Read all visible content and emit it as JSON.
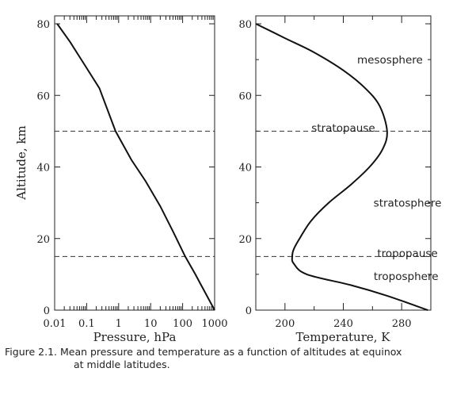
{
  "chart_data": [
    {
      "type": "line",
      "xlabel": "Pressure, hPa",
      "ylabel": "Altitude, km",
      "xscale": "log",
      "xlim": [
        0.01,
        1000
      ],
      "ylim": [
        0,
        80
      ],
      "xticks": [
        "0.01",
        "0.1",
        "1",
        "10",
        "100",
        "1000"
      ],
      "yticks": [
        "0",
        "20",
        "40",
        "60",
        "80"
      ],
      "series": [
        {
          "x": [
            0.012,
            0.03,
            0.08,
            0.25,
            0.8,
            2.5,
            7,
            20,
            50,
            120,
            250,
            500,
            1000
          ],
          "y": [
            80,
            75,
            69,
            62,
            50,
            42,
            36,
            29,
            22,
            15,
            10,
            5,
            0
          ]
        }
      ],
      "reference_lines": [
        50,
        15
      ]
    },
    {
      "type": "line",
      "xlabel": "Temperature, K",
      "xlim": [
        180,
        300
      ],
      "ylim": [
        0,
        80
      ],
      "xticks": [
        "200",
        "240",
        "280"
      ],
      "yticks": [
        "0",
        "20",
        "40",
        "60",
        "80"
      ],
      "series": [
        {
          "x": [
            180,
            200,
            220,
            240,
            255,
            265,
            270,
            267,
            258,
            245,
            230,
            218,
            210,
            206,
            205,
            206,
            215,
            245,
            270,
            298
          ],
          "y": [
            80,
            76,
            72,
            67,
            62,
            57,
            50,
            45,
            40,
            35,
            30,
            25,
            20,
            17,
            15,
            13,
            10,
            7,
            4,
            0
          ]
        }
      ],
      "reference_lines": [
        50,
        15
      ],
      "annotations": [
        {
          "text": "mesosphere",
          "x": 272,
          "y": 70
        },
        {
          "text": "stratopause",
          "x": 240,
          "y": 51
        },
        {
          "text": "stratosphere",
          "x": 284,
          "y": 30
        },
        {
          "text": "tropopause",
          "x": 284,
          "y": 16
        },
        {
          "text": "troposphere",
          "x": 283,
          "y": 9.5
        }
      ]
    }
  ],
  "caption": {
    "line1": "Figure 2.1.  Mean pressure and temperature as a function of altitudes at equinox",
    "line2": "at middle latitudes."
  }
}
